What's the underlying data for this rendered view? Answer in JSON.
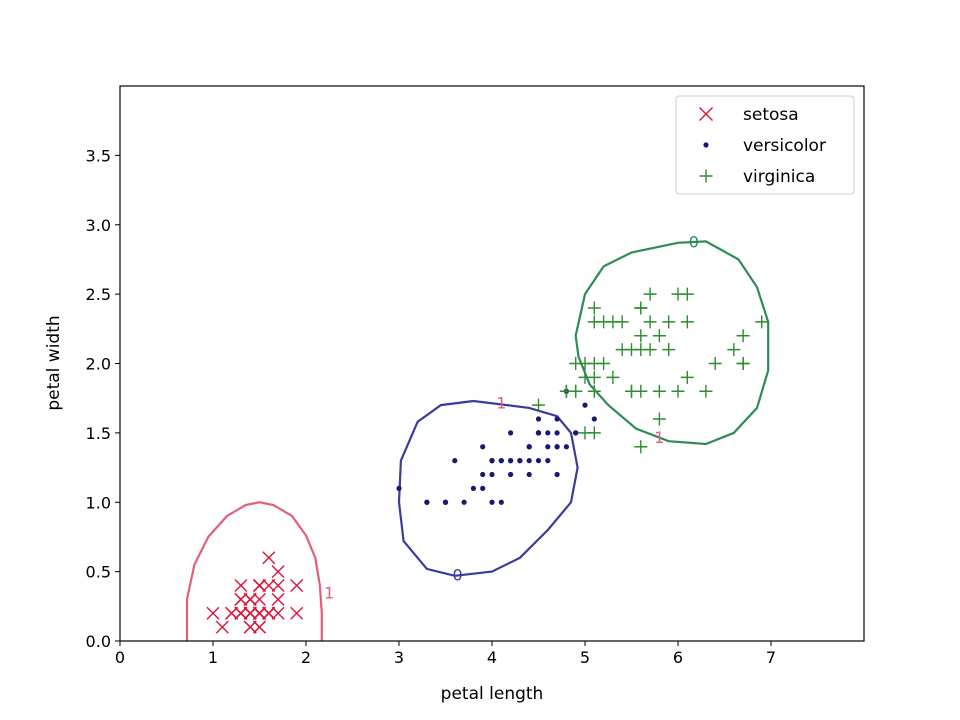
{
  "chart_data": {
    "type": "scatter",
    "xlabel": "petal length",
    "ylabel": "petal width",
    "xlim": [
      0,
      8
    ],
    "ylim": [
      0,
      4
    ],
    "xticks": [
      "0",
      "1",
      "2",
      "3",
      "4",
      "5",
      "6",
      "7"
    ],
    "yticks": [
      "0.0",
      "0.5",
      "1.0",
      "1.5",
      "2.0",
      "2.5",
      "3.0",
      "3.5"
    ],
    "legend_position": "top-right",
    "series": [
      {
        "name": "setosa",
        "marker": "x",
        "color": "#dc143c",
        "points": [
          [
            1.4,
            0.2
          ],
          [
            1.4,
            0.2
          ],
          [
            1.3,
            0.2
          ],
          [
            1.5,
            0.2
          ],
          [
            1.4,
            0.2
          ],
          [
            1.7,
            0.4
          ],
          [
            1.4,
            0.3
          ],
          [
            1.5,
            0.2
          ],
          [
            1.4,
            0.2
          ],
          [
            1.5,
            0.1
          ],
          [
            1.5,
            0.2
          ],
          [
            1.6,
            0.2
          ],
          [
            1.4,
            0.1
          ],
          [
            1.1,
            0.1
          ],
          [
            1.2,
            0.2
          ],
          [
            1.5,
            0.4
          ],
          [
            1.3,
            0.4
          ],
          [
            1.4,
            0.3
          ],
          [
            1.7,
            0.3
          ],
          [
            1.5,
            0.3
          ],
          [
            1.7,
            0.2
          ],
          [
            1.5,
            0.4
          ],
          [
            1.0,
            0.2
          ],
          [
            1.7,
            0.5
          ],
          [
            1.9,
            0.2
          ],
          [
            1.6,
            0.2
          ],
          [
            1.6,
            0.4
          ],
          [
            1.5,
            0.2
          ],
          [
            1.4,
            0.2
          ],
          [
            1.6,
            0.2
          ],
          [
            1.6,
            0.2
          ],
          [
            1.5,
            0.4
          ],
          [
            1.5,
            0.1
          ],
          [
            1.4,
            0.2
          ],
          [
            1.5,
            0.2
          ],
          [
            1.2,
            0.2
          ],
          [
            1.3,
            0.2
          ],
          [
            1.4,
            0.1
          ],
          [
            1.3,
            0.2
          ],
          [
            1.5,
            0.2
          ],
          [
            1.3,
            0.3
          ],
          [
            1.3,
            0.3
          ],
          [
            1.3,
            0.2
          ],
          [
            1.6,
            0.6
          ],
          [
            1.9,
            0.4
          ],
          [
            1.4,
            0.3
          ],
          [
            1.6,
            0.2
          ],
          [
            1.4,
            0.2
          ],
          [
            1.5,
            0.2
          ],
          [
            1.4,
            0.2
          ]
        ]
      },
      {
        "name": "versicolor",
        "marker": "dot",
        "color": "#191970",
        "points": [
          [
            4.7,
            1.4
          ],
          [
            4.5,
            1.5
          ],
          [
            4.9,
            1.5
          ],
          [
            4.0,
            1.3
          ],
          [
            4.6,
            1.5
          ],
          [
            4.5,
            1.3
          ],
          [
            4.7,
            1.6
          ],
          [
            3.3,
            1.0
          ],
          [
            4.6,
            1.3
          ],
          [
            3.9,
            1.4
          ],
          [
            3.5,
            1.0
          ],
          [
            4.2,
            1.5
          ],
          [
            4.0,
            1.0
          ],
          [
            4.7,
            1.4
          ],
          [
            3.6,
            1.3
          ],
          [
            4.4,
            1.4
          ],
          [
            4.5,
            1.5
          ],
          [
            4.1,
            1.0
          ],
          [
            4.5,
            1.5
          ],
          [
            3.9,
            1.1
          ],
          [
            4.8,
            1.8
          ],
          [
            4.0,
            1.3
          ],
          [
            4.9,
            1.5
          ],
          [
            4.7,
            1.2
          ],
          [
            4.3,
            1.3
          ],
          [
            4.4,
            1.4
          ],
          [
            4.8,
            1.4
          ],
          [
            5.0,
            1.7
          ],
          [
            4.5,
            1.5
          ],
          [
            3.5,
            1.0
          ],
          [
            3.8,
            1.1
          ],
          [
            3.7,
            1.0
          ],
          [
            3.9,
            1.2
          ],
          [
            5.1,
            1.6
          ],
          [
            4.5,
            1.5
          ],
          [
            4.5,
            1.6
          ],
          [
            4.7,
            1.5
          ],
          [
            4.4,
            1.3
          ],
          [
            4.1,
            1.3
          ],
          [
            4.0,
            1.3
          ],
          [
            4.4,
            1.2
          ],
          [
            4.6,
            1.4
          ],
          [
            4.0,
            1.2
          ],
          [
            3.3,
            1.0
          ],
          [
            4.2,
            1.3
          ],
          [
            4.2,
            1.2
          ],
          [
            4.2,
            1.3
          ],
          [
            4.3,
            1.3
          ],
          [
            3.0,
            1.1
          ],
          [
            4.1,
            1.3
          ]
        ]
      },
      {
        "name": "virginica",
        "marker": "+",
        "color": "#2e8b2e",
        "points": [
          [
            6.0,
            2.5
          ],
          [
            5.1,
            1.9
          ],
          [
            5.9,
            2.1
          ],
          [
            5.6,
            1.8
          ],
          [
            5.8,
            2.2
          ],
          [
            6.6,
            2.1
          ],
          [
            4.5,
            1.7
          ],
          [
            6.3,
            1.8
          ],
          [
            5.8,
            1.8
          ],
          [
            6.1,
            2.5
          ],
          [
            5.1,
            2.0
          ],
          [
            5.3,
            1.9
          ],
          [
            5.5,
            2.1
          ],
          [
            5.0,
            2.0
          ],
          [
            5.1,
            2.4
          ],
          [
            5.3,
            2.3
          ],
          [
            5.5,
            1.8
          ],
          [
            6.7,
            2.2
          ],
          [
            6.9,
            2.3
          ],
          [
            5.0,
            1.5
          ],
          [
            5.7,
            2.3
          ],
          [
            4.9,
            2.0
          ],
          [
            6.7,
            2.0
          ],
          [
            4.9,
            1.8
          ],
          [
            5.7,
            2.1
          ],
          [
            6.0,
            1.8
          ],
          [
            4.8,
            1.8
          ],
          [
            4.9,
            1.8
          ],
          [
            5.6,
            2.1
          ],
          [
            5.8,
            1.6
          ],
          [
            6.1,
            1.9
          ],
          [
            6.4,
            2.0
          ],
          [
            5.6,
            2.2
          ],
          [
            5.1,
            1.5
          ],
          [
            5.6,
            1.4
          ],
          [
            6.1,
            2.3
          ],
          [
            5.6,
            2.4
          ],
          [
            5.5,
            1.8
          ],
          [
            4.8,
            1.8
          ],
          [
            5.4,
            2.1
          ],
          [
            5.6,
            2.4
          ],
          [
            5.1,
            2.3
          ],
          [
            5.9,
            2.3
          ],
          [
            5.7,
            2.5
          ],
          [
            5.2,
            2.3
          ],
          [
            5.0,
            1.9
          ],
          [
            5.2,
            2.0
          ],
          [
            5.4,
            2.3
          ],
          [
            5.1,
            1.8
          ],
          [
            6.7,
            2.0
          ]
        ]
      }
    ],
    "contours": [
      {
        "class": "setosa",
        "color": "#e0607a",
        "label": "1",
        "path": [
          [
            0.72,
            0.0
          ],
          [
            0.72,
            0.3
          ],
          [
            0.8,
            0.55
          ],
          [
            0.95,
            0.75
          ],
          [
            1.15,
            0.9
          ],
          [
            1.35,
            0.98
          ],
          [
            1.5,
            1.0
          ],
          [
            1.65,
            0.98
          ],
          [
            1.85,
            0.9
          ],
          [
            2.0,
            0.76
          ],
          [
            2.1,
            0.6
          ],
          [
            2.15,
            0.4
          ],
          [
            2.17,
            0.2
          ],
          [
            2.17,
            0.0
          ]
        ],
        "closed": false,
        "label_at": [
          2.25,
          0.35
        ]
      },
      {
        "class": "versicolor",
        "color": "#3a3aa0",
        "label": "0",
        "path": [
          [
            3.0,
            1.0
          ],
          [
            3.02,
            1.3
          ],
          [
            3.2,
            1.58
          ],
          [
            3.45,
            1.7
          ],
          [
            3.8,
            1.73
          ],
          [
            4.4,
            1.68
          ],
          [
            4.7,
            1.62
          ],
          [
            4.85,
            1.5
          ],
          [
            4.92,
            1.25
          ],
          [
            4.85,
            1.0
          ],
          [
            4.6,
            0.8
          ],
          [
            4.3,
            0.6
          ],
          [
            4.0,
            0.5
          ],
          [
            3.6,
            0.47
          ],
          [
            3.3,
            0.52
          ],
          [
            3.05,
            0.72
          ]
        ],
        "closed": true,
        "label_at": [
          3.63,
          0.48
        ]
      },
      {
        "class": "virginica",
        "color": "#2e8b57",
        "label": "0",
        "path": [
          [
            4.9,
            2.2
          ],
          [
            5.0,
            2.5
          ],
          [
            5.2,
            2.7
          ],
          [
            5.5,
            2.8
          ],
          [
            6.0,
            2.87
          ],
          [
            6.3,
            2.88
          ],
          [
            6.65,
            2.75
          ],
          [
            6.85,
            2.55
          ],
          [
            6.97,
            2.3
          ],
          [
            6.97,
            1.95
          ],
          [
            6.85,
            1.68
          ],
          [
            6.6,
            1.5
          ],
          [
            6.3,
            1.42
          ],
          [
            5.9,
            1.44
          ],
          [
            5.55,
            1.53
          ],
          [
            5.25,
            1.7
          ],
          [
            5.05,
            1.85
          ],
          [
            4.93,
            2.05
          ]
        ],
        "closed": true,
        "label_at": [
          6.17,
          2.88
        ]
      }
    ],
    "contour_labels_extra": [
      {
        "text": "1",
        "at": [
          4.1,
          1.72
        ],
        "color": "#e0607a"
      },
      {
        "text": "1",
        "at": [
          5.8,
          1.47
        ],
        "color": "#e0607a"
      }
    ]
  }
}
